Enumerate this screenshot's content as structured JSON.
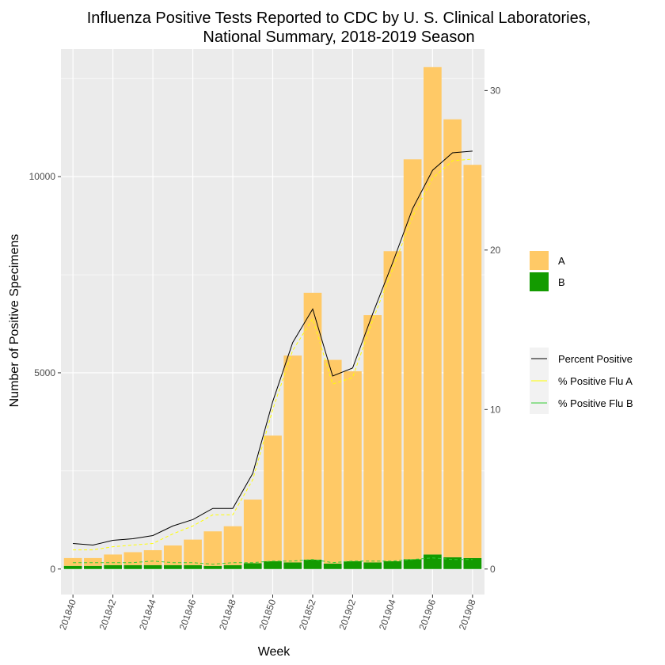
{
  "chart_data": {
    "type": "bar",
    "title": "Influenza Positive Tests Reported to CDC by U. S. Clinical Laboratories,",
    "subtitle": "National Summary, 2018-2019 Season",
    "xlabel": "Week",
    "ylabel": "Number of Positive Specimens",
    "categories": [
      "201840",
      "201841",
      "201842",
      "201843",
      "201844",
      "201845",
      "201846",
      "201847",
      "201848",
      "201849",
      "201850",
      "201851",
      "201852",
      "201901",
      "201902",
      "201903",
      "201904",
      "201905",
      "201906",
      "201907",
      "201908"
    ],
    "x_tick_labels": [
      "201840",
      "201842",
      "201844",
      "201846",
      "201848",
      "201850",
      "201852",
      "201902",
      "201904",
      "201906",
      "201908"
    ],
    "ylim": [
      -650,
      13250
    ],
    "y_ticks": [
      0,
      5000,
      10000
    ],
    "y2lim": [
      -1.6,
      32.6
    ],
    "y2_ticks": [
      0,
      10,
      20,
      30
    ],
    "series": [
      {
        "name": "A",
        "kind": "stacked_bar",
        "color": "#FFC966",
        "values": [
          200,
          200,
          270,
          330,
          380,
          500,
          650,
          880,
          990,
          1620,
          3200,
          5270,
          6800,
          5190,
          4840,
          6300,
          7900,
          10190,
          12420,
          11160,
          10020
        ]
      },
      {
        "name": "B",
        "kind": "stacked_bar",
        "color": "#139B00",
        "values": [
          80,
          80,
          100,
          100,
          100,
          100,
          100,
          80,
          100,
          150,
          200,
          170,
          240,
          140,
          200,
          170,
          200,
          250,
          370,
          300,
          280
        ]
      },
      {
        "name": "Percent Positive",
        "kind": "line",
        "axis": "secondary",
        "color": "#000000",
        "values": [
          1.6,
          1.5,
          1.8,
          1.9,
          2.1,
          2.7,
          3.1,
          3.8,
          3.8,
          6.0,
          10.5,
          14.2,
          16.3,
          12.1,
          12.6,
          16.0,
          19.2,
          22.6,
          25.0,
          26.1,
          26.2
        ]
      },
      {
        "name": "% Positive Flu A",
        "kind": "line",
        "axis": "secondary",
        "color": "#FFFF00",
        "values": [
          1.2,
          1.2,
          1.4,
          1.5,
          1.6,
          2.2,
          2.7,
          3.4,
          3.4,
          5.6,
          10.0,
          13.7,
          15.7,
          11.6,
          12.0,
          15.6,
          18.8,
          22.1,
          24.5,
          25.6,
          25.7
        ]
      },
      {
        "name": "% Positive Flu B",
        "kind": "line",
        "axis": "secondary",
        "color": "#33CC33",
        "values": [
          0.4,
          0.4,
          0.4,
          0.4,
          0.5,
          0.4,
          0.4,
          0.3,
          0.4,
          0.4,
          0.5,
          0.5,
          0.6,
          0.4,
          0.5,
          0.5,
          0.5,
          0.6,
          0.7,
          0.6,
          0.6
        ]
      }
    ],
    "legend_fill": {
      "entries": [
        "A",
        "B"
      ],
      "colors": [
        "#FFC966",
        "#139B00"
      ]
    },
    "legend_lines": {
      "entries": [
        "Percent Positive",
        "% Positive Flu A",
        "% Positive Flu B"
      ],
      "colors": [
        "#000000",
        "#FFFF00",
        "#33CC33"
      ]
    },
    "legend_placement": "right",
    "grid": true,
    "panel_background": "#EBEBEB"
  }
}
